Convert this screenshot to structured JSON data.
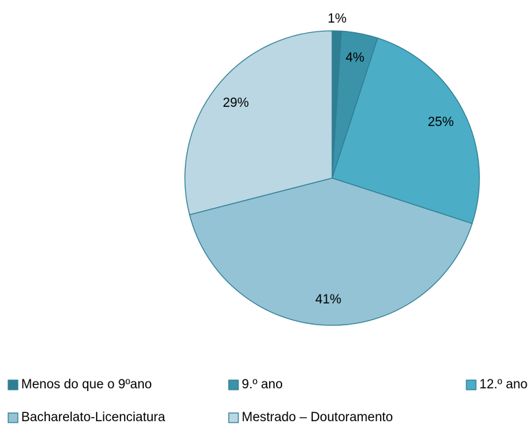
{
  "chart_data": {
    "type": "pie",
    "categories": [
      "Menos do que o 9ºano",
      "9.º ano",
      "12.º ano",
      "Bacharelato-Licenciatura",
      "Mestrado – Doutoramento"
    ],
    "values": [
      1,
      4,
      25,
      41,
      29
    ],
    "value_labels": [
      "1%",
      "4%",
      "25%",
      "41%",
      "29%"
    ],
    "colors": [
      "#2f7e93",
      "#3b93aa",
      "#4badc6",
      "#93c3d5",
      "#bad7e3"
    ],
    "legend": "bottom"
  }
}
